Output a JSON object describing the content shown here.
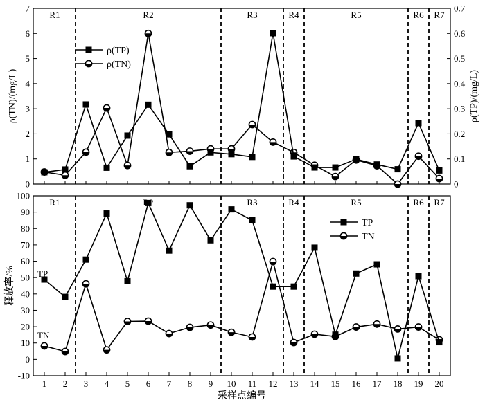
{
  "chart_data": [
    {
      "type": "line",
      "x": [
        1,
        2,
        3,
        4,
        5,
        6,
        7,
        8,
        9,
        10,
        11,
        12,
        13,
        14,
        15,
        16,
        17,
        18,
        19,
        20
      ],
      "ylabel": "ρ(TN)/(mg/L)",
      "ylabel_right": "ρ(TP)/(mg/L)",
      "ylim": [
        0,
        7
      ],
      "yticks": [
        "0",
        "1",
        "2",
        "3",
        "4",
        "5",
        "6",
        "7"
      ],
      "ylim_right": [
        0,
        0.7
      ],
      "yticks_right": [
        "0",
        "0.1",
        "0.2",
        "0.3",
        "0.4",
        "0.5",
        "0.6",
        "0.7"
      ],
      "regions": [
        {
          "label": "R1",
          "from": 0.5,
          "to": 2.5
        },
        {
          "label": "R2",
          "from": 2.5,
          "to": 9.5
        },
        {
          "label": "R3",
          "from": 9.5,
          "to": 12.5
        },
        {
          "label": "R4",
          "from": 12.5,
          "to": 13.5
        },
        {
          "label": "R5",
          "from": 13.5,
          "to": 18.5
        },
        {
          "label": "R6",
          "from": 18.5,
          "to": 19.5
        },
        {
          "label": "R7",
          "from": 19.5,
          "to": 20.5
        }
      ],
      "legend_position": "top-left",
      "series": [
        {
          "name": "ρ(TP)",
          "marker": "square",
          "axis": "right",
          "values": [
            0.047,
            0.058,
            0.317,
            0.065,
            0.193,
            0.316,
            0.198,
            0.071,
            0.126,
            0.119,
            0.108,
            0.601,
            0.11,
            0.066,
            0.066,
            0.099,
            0.078,
            0.059,
            0.243,
            0.054
          ]
        },
        {
          "name": "ρ(TN)",
          "marker": "circle",
          "axis": "left",
          "values": [
            0.48,
            0.35,
            1.27,
            3.03,
            0.74,
            6.0,
            1.26,
            1.31,
            1.4,
            1.4,
            2.37,
            1.67,
            1.26,
            0.75,
            0.3,
            0.96,
            0.73,
            0.0,
            1.11,
            0.22
          ]
        }
      ]
    },
    {
      "type": "line",
      "x": [
        1,
        2,
        3,
        4,
        5,
        6,
        7,
        8,
        9,
        10,
        11,
        12,
        13,
        14,
        15,
        16,
        17,
        18,
        19,
        20
      ],
      "xlabel": "采样点编号",
      "xticks": [
        "1",
        "2",
        "3",
        "4",
        "5",
        "6",
        "7",
        "8",
        "9",
        "10",
        "11",
        "12",
        "13",
        "14",
        "15",
        "16",
        "17",
        "18",
        "19",
        "20"
      ],
      "ylabel": "释放率/%",
      "ylim": [
        -10,
        100
      ],
      "yticks": [
        "-10",
        "0",
        "10",
        "20",
        "30",
        "40",
        "50",
        "60",
        "70",
        "80",
        "90",
        "100"
      ],
      "regions": [
        {
          "label": "R1",
          "from": 0.5,
          "to": 2.5
        },
        {
          "label": "R2",
          "from": 2.5,
          "to": 9.5
        },
        {
          "label": "R3",
          "from": 9.5,
          "to": 12.5
        },
        {
          "label": "R4",
          "from": 12.5,
          "to": 13.5
        },
        {
          "label": "R5",
          "from": 13.5,
          "to": 18.5
        },
        {
          "label": "R6",
          "from": 18.5,
          "to": 19.5
        },
        {
          "label": "R7",
          "from": 19.5,
          "to": 20.5
        }
      ],
      "legend_position": "top-right",
      "annotations": [
        "TP",
        "TN"
      ],
      "series": [
        {
          "name": "TP",
          "marker": "square",
          "values": [
            48.8,
            38.2,
            61.0,
            89.2,
            47.8,
            95.6,
            66.5,
            94.2,
            72.8,
            91.7,
            85.0,
            44.5,
            44.5,
            68.3,
            15.1,
            52.5,
            58.1,
            0.6,
            50.9,
            10.5
          ]
        },
        {
          "name": "TN",
          "marker": "circle",
          "values": [
            8.2,
            4.8,
            46.2,
            5.8,
            23.2,
            23.4,
            15.8,
            19.6,
            21.0,
            16.6,
            13.7,
            59.8,
            10.3,
            15.4,
            14.0,
            19.8,
            21.6,
            18.6,
            19.8,
            12.0
          ]
        }
      ]
    }
  ]
}
